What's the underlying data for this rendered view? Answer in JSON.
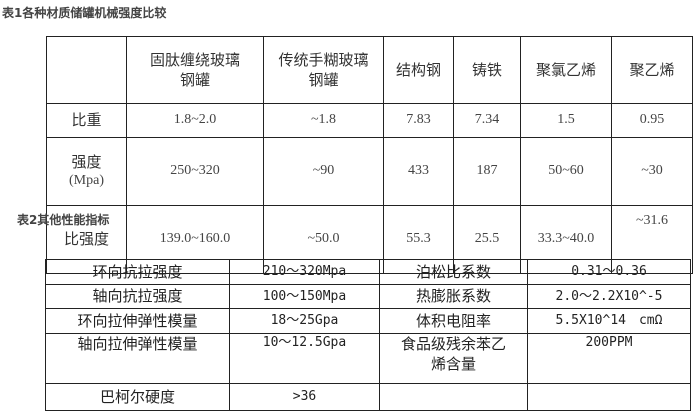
{
  "table1": {
    "title": "表1各种材质储罐机械强度比较",
    "headers": [
      "",
      "固肽缠绕玻璃钢罐",
      "传统手糊玻璃钢罐",
      "结构钢",
      "铸铁",
      "聚氯乙烯",
      "聚乙烯"
    ],
    "rows": [
      {
        "label": "比重",
        "values": [
          "1.8~2.0",
          "~1.8",
          "7.83",
          "7.34",
          "1.5",
          "0.95"
        ]
      },
      {
        "label": "强度",
        "sublabel": "(Mpa)",
        "values": [
          "250~320",
          "~90",
          "433",
          "187",
          "50~60",
          "~30"
        ]
      },
      {
        "label": "比强度",
        "values": [
          "139.0~160.0",
          "~50.0",
          "55.3",
          "25.5",
          "33.3~40.0",
          "~31.6"
        ]
      }
    ]
  },
  "table2": {
    "title": "表2其他性能指标",
    "rows": [
      [
        "环向抗拉强度",
        "210～320Mpa",
        "泊松比系数",
        "0.31～0.36"
      ],
      [
        "轴向抗拉强度",
        "100～150Mpa",
        "热膨胀系数",
        "2.0～2.2X10^-5"
      ],
      [
        "环向拉伸弹性模量",
        "18～25Gpa",
        "体积电阻率",
        "5.5X10^14　cmΩ"
      ],
      [
        "轴向拉伸弹性模量",
        "10～12.5Gpa",
        "食品级残余苯乙烯含量",
        "200PPM"
      ],
      [
        "巴柯尔硬度",
        ">36",
        "",
        ""
      ]
    ]
  }
}
